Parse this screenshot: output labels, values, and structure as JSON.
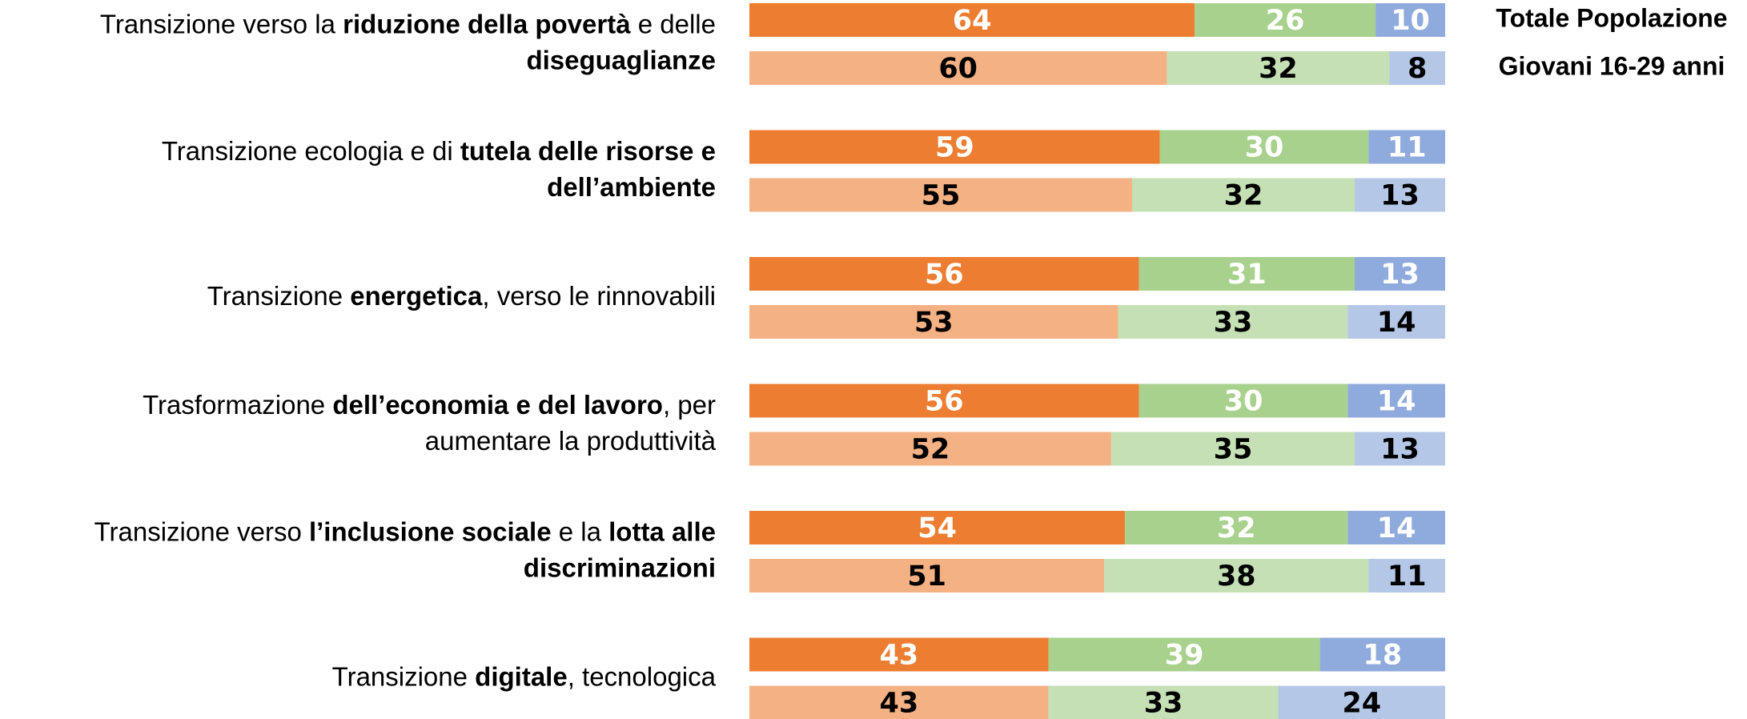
{
  "chart_data": {
    "type": "stacked-bar-horizontal",
    "categories": [
      [
        [
          {
            "text": "Transizione verso la ",
            "bold": false
          },
          {
            "text": "riduzione della povertà",
            "bold": true
          },
          {
            "text": " e delle",
            "bold": false
          }
        ],
        [
          {
            "text": "diseguaglianze",
            "bold": true
          }
        ]
      ],
      [
        [
          {
            "text": "Transizione ecologia e di ",
            "bold": false
          },
          {
            "text": "tutela delle risorse e",
            "bold": true
          }
        ],
        [
          {
            "text": "dell’ambiente",
            "bold": true
          }
        ]
      ],
      [
        [
          {
            "text": "Transizione ",
            "bold": false
          },
          {
            "text": "energetica",
            "bold": true
          },
          {
            "text": ", verso le rinnovabili",
            "bold": false
          }
        ]
      ],
      [
        [
          {
            "text": "Trasformazione ",
            "bold": false
          },
          {
            "text": "dell’economia e del lavoro",
            "bold": true
          },
          {
            "text": ", per",
            "bold": false
          }
        ],
        [
          {
            "text": "aumentare la produttività",
            "bold": false
          }
        ]
      ],
      [
        [
          {
            "text": "Transizione verso ",
            "bold": false
          },
          {
            "text": "l’inclusione sociale",
            "bold": true
          },
          {
            "text": " e la ",
            "bold": false
          },
          {
            "text": "lotta alle",
            "bold": true
          }
        ],
        [
          {
            "text": "discriminazioni",
            "bold": true
          }
        ]
      ],
      [
        [
          {
            "text": "Transizione ",
            "bold": false
          },
          {
            "text": "digitale",
            "bold": true
          },
          {
            "text": ", tecnologica",
            "bold": false
          }
        ]
      ]
    ],
    "series": [
      {
        "name": "Totale Popolazione",
        "colors": [
          "#ed7d31",
          "#a9d18e",
          "#8faadc"
        ],
        "label_color": "#ffffff",
        "values": [
          [
            64,
            26,
            10
          ],
          [
            59,
            30,
            11
          ],
          [
            56,
            31,
            13
          ],
          [
            56,
            30,
            14
          ],
          [
            54,
            32,
            14
          ],
          [
            43,
            39,
            18
          ]
        ]
      },
      {
        "name": "Giovani 16-29 anni",
        "colors": [
          "#f4b183",
          "#c5e0b4",
          "#b4c7e7"
        ],
        "label_color": "#000000",
        "values": [
          [
            60,
            32,
            8
          ],
          [
            55,
            32,
            13
          ],
          [
            53,
            33,
            14
          ],
          [
            52,
            35,
            13
          ],
          [
            51,
            38,
            11
          ],
          [
            43,
            33,
            24
          ]
        ]
      }
    ],
    "xlim": [
      0,
      100
    ]
  }
}
